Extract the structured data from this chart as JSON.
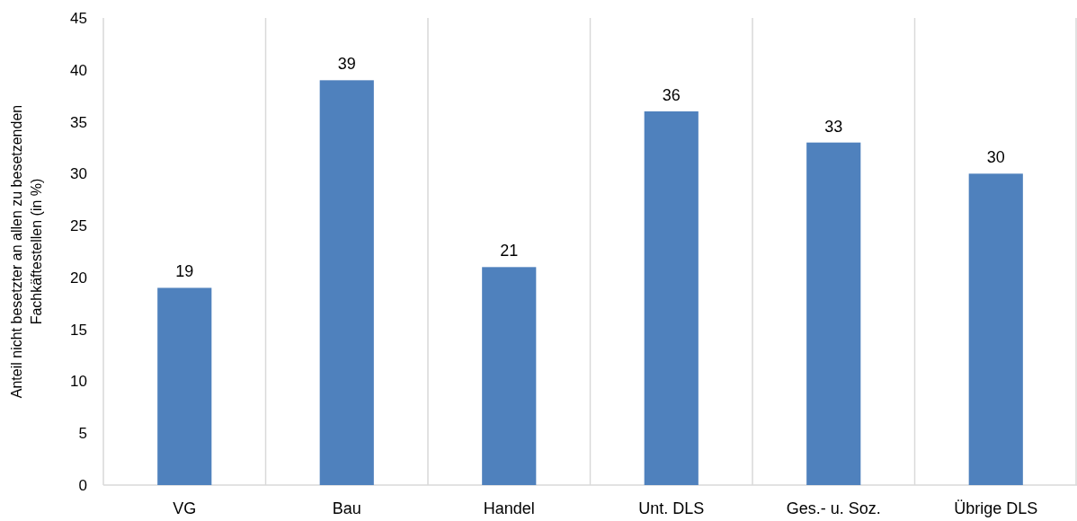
{
  "chart_data": {
    "type": "bar",
    "ylabel": "Anteil nicht besetzter an allen zu besetzenden\nFachkäftestellen  (in %)",
    "categories": [
      "VG",
      "Bau",
      "Handel",
      "Unt. DLS",
      "Ges.- u. Soz.",
      "Übrige DLS"
    ],
    "values": [
      19,
      39,
      21,
      36,
      33,
      30
    ],
    "color": "#4f81bd",
    "ylim": [
      0,
      45
    ],
    "yticks": [
      0,
      5,
      10,
      15,
      20,
      25,
      30,
      35,
      40,
      45
    ],
    "grid": "x",
    "data_labels": true
  }
}
